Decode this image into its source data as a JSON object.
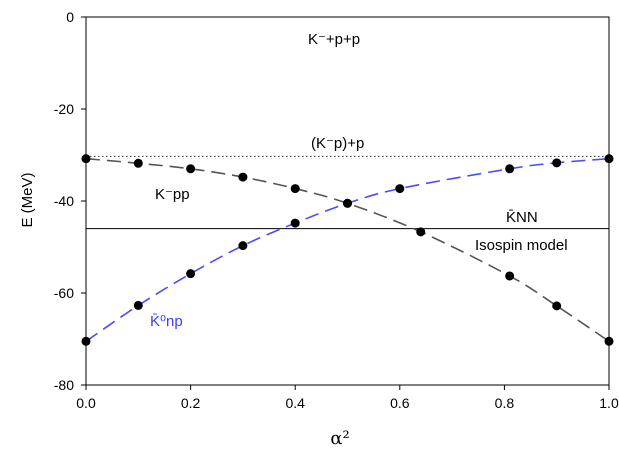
{
  "chart_data": {
    "type": "line",
    "xlabel": "α²",
    "ylabel": "E (MeV)",
    "xlim": [
      0,
      1
    ],
    "ylim": [
      -80,
      0
    ],
    "xticks": [
      "0.0",
      "0.2",
      "0.4",
      "0.6",
      "0.8",
      "1.0"
    ],
    "yticks": [
      "0",
      "-20",
      "-40",
      "-60",
      "-80"
    ],
    "grid": false,
    "series": [
      {
        "name": "K⁻pp",
        "color": "#555555",
        "style": "dashed",
        "x": [
          0.0,
          0.1,
          0.2,
          0.3,
          0.4,
          0.5,
          0.64,
          0.81,
          0.9,
          1.0
        ],
        "y": [
          -30.8,
          -31.8,
          -33.0,
          -34.8,
          -37.3,
          -40.5,
          -46.7,
          -56.3,
          -62.8,
          -70.5
        ]
      },
      {
        "name": "K̄⁰np",
        "color": "#4a4aff",
        "style": "dashed",
        "x": [
          0.0,
          0.1,
          0.2,
          0.3,
          0.4,
          0.5,
          0.6,
          0.81,
          0.9,
          1.0
        ],
        "y": [
          -70.5,
          -62.7,
          -55.8,
          -49.7,
          -44.8,
          -40.5,
          -37.3,
          -33.0,
          -31.7,
          -30.8
        ]
      }
    ],
    "reference_lines": [
      {
        "label": "(K⁻p)+p",
        "y": -30.3,
        "style": "dotted"
      },
      {
        "label": "Isospin model",
        "y": -46.0,
        "style": "solid"
      }
    ],
    "annotations": {
      "threshold": "K⁻+p+p",
      "kpp": "K⁻pp",
      "kbar_nn": "K̄NN",
      "kbar0_np": "K̄⁰np",
      "kp_p": "(K⁻p)+p",
      "isospin": "Isospin model"
    }
  }
}
